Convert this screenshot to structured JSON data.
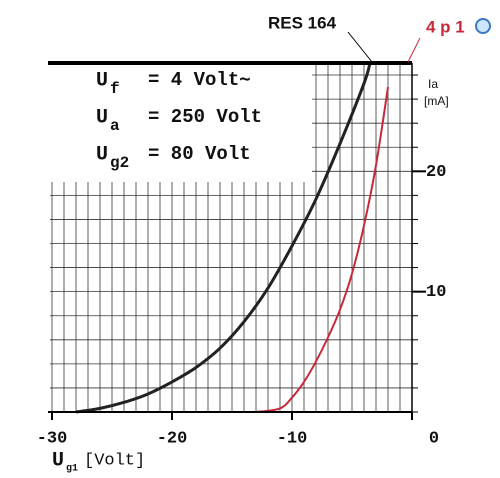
{
  "chart_data": {
    "type": "line",
    "annotations": {
      "curve1": "RES 164",
      "curve2": "4 p 1"
    },
    "conditions": [
      {
        "symbol": "U",
        "sub": "f",
        "text": "= 4 Volt∼"
      },
      {
        "symbol": "U",
        "sub": "a",
        "text": "= 250 Volt"
      },
      {
        "symbol": "U",
        "sub": "g2",
        "text": "= 80  Volt"
      }
    ],
    "ylabel": {
      "symbol": "Ia",
      "unit": "[mA]"
    },
    "xlabel": {
      "symbol": "U",
      "sub": "g1",
      "unit": "[Volt]"
    },
    "xlim": [
      -30,
      0
    ],
    "xticks": [
      -30,
      -20,
      -10,
      0
    ],
    "ylim": [
      0,
      29
    ],
    "yticks": [
      10,
      20
    ],
    "grid": true,
    "series": [
      {
        "name": "RES 164",
        "color": "#222222",
        "x": [
          -28,
          -26,
          -24,
          -22,
          -20,
          -18,
          -16,
          -14,
          -12,
          -10,
          -8,
          -6,
          -4,
          -3.5
        ],
        "values": [
          0,
          0.3,
          0.8,
          1.5,
          2.5,
          3.7,
          5.3,
          7.5,
          10.3,
          13.8,
          17.7,
          22.3,
          27.3,
          29
        ]
      },
      {
        "name": "4 p 1",
        "color": "#c8283c",
        "x": [
          -13,
          -11,
          -10,
          -9,
          -8,
          -7,
          -6,
          -5,
          -4,
          -3,
          -2
        ],
        "values": [
          0,
          0.3,
          1.2,
          2.5,
          4.2,
          6.2,
          8.5,
          11.5,
          15.5,
          20.5,
          27
        ]
      }
    ]
  }
}
